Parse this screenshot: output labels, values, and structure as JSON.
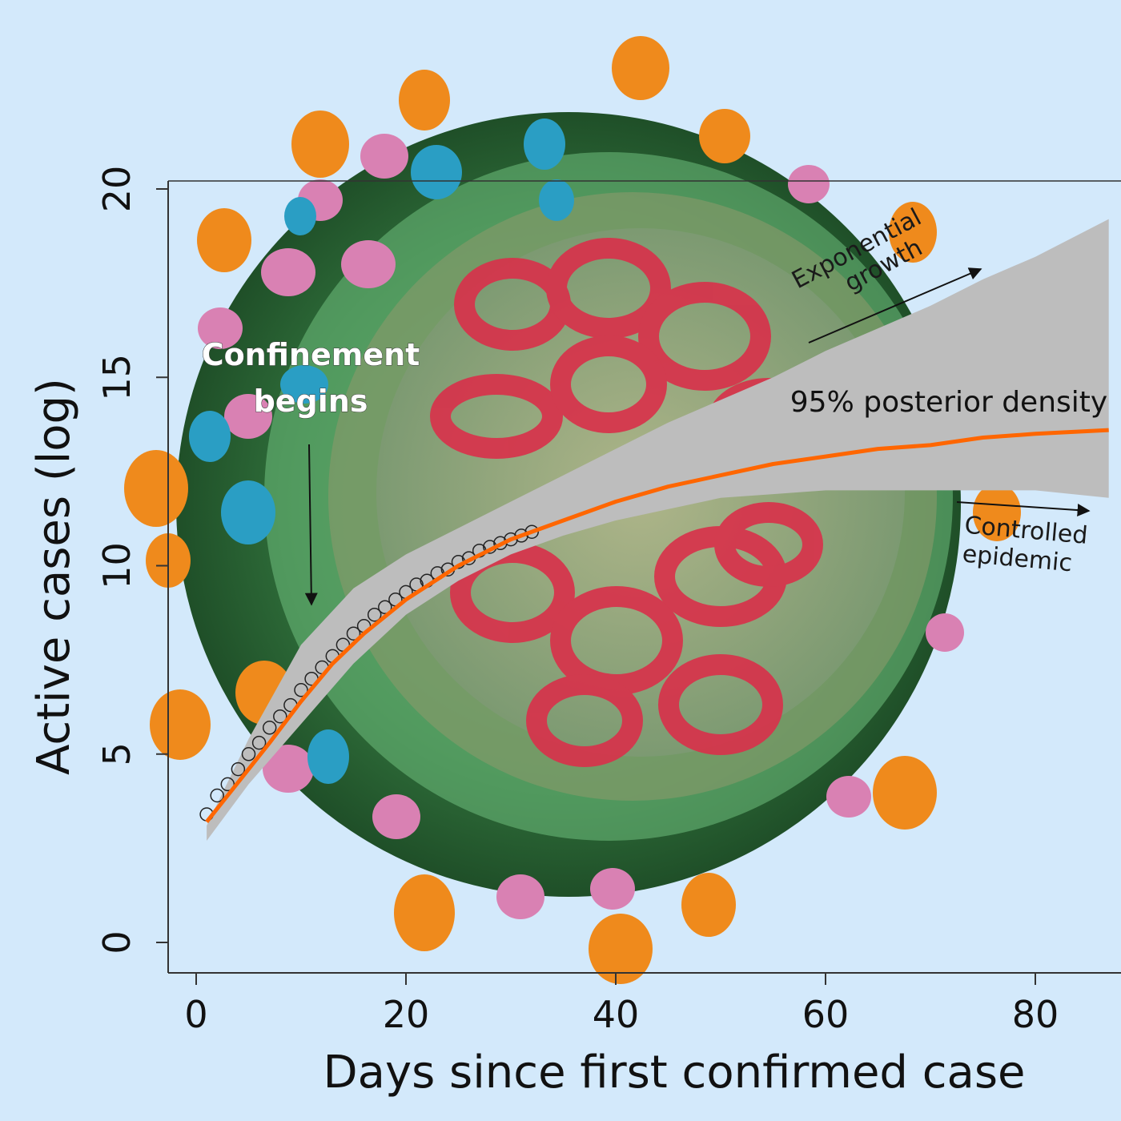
{
  "chart_data": {
    "type": "line",
    "xlabel": "Days since first confirmed case",
    "ylabel": "Active cases (log)",
    "xlim": [
      -3,
      88
    ],
    "ylim": [
      -1.5,
      20.5
    ],
    "x_ticks": [
      0,
      20,
      40,
      60,
      80
    ],
    "y_ticks": [
      0,
      5,
      10,
      15,
      20
    ],
    "grid": false,
    "observed": {
      "marker": "open-circle",
      "x": [
        1,
        2,
        3,
        4,
        5,
        6,
        7,
        8,
        9,
        10,
        11,
        12,
        13,
        14,
        15,
        16,
        17,
        18,
        19,
        20,
        21,
        22,
        23,
        24,
        25,
        26,
        27,
        28,
        29,
        30,
        31,
        32
      ],
      "y": [
        3.4,
        3.9,
        4.2,
        4.6,
        5.0,
        5.3,
        5.7,
        6.0,
        6.3,
        6.7,
        7.0,
        7.3,
        7.6,
        7.9,
        8.2,
        8.4,
        8.7,
        8.9,
        9.1,
        9.3,
        9.5,
        9.6,
        9.8,
        9.9,
        10.1,
        10.2,
        10.4,
        10.5,
        10.6,
        10.7,
        10.8,
        10.9
      ]
    },
    "series": [
      {
        "color": "#ff6600",
        "x": [
          1,
          3,
          5,
          7,
          10,
          13,
          16,
          20,
          25,
          30,
          35,
          40,
          45,
          50,
          55,
          60,
          65,
          70,
          75,
          80,
          87
        ],
        "y": [
          3.2,
          3.9,
          4.6,
          5.3,
          6.4,
          7.4,
          8.2,
          9.1,
          10.0,
          10.7,
          11.2,
          11.7,
          12.1,
          12.4,
          12.7,
          12.9,
          13.1,
          13.2,
          13.4,
          13.5,
          13.6
        ]
      }
    ],
    "band": {
      "label": "95% posterior density",
      "color": "#bdbdbd",
      "x": [
        1,
        5,
        10,
        15,
        20,
        25,
        30,
        35,
        40,
        45,
        50,
        55,
        60,
        65,
        70,
        75,
        80,
        87
      ],
      "upper": [
        3.1,
        5.4,
        7.9,
        9.4,
        10.3,
        11.0,
        11.7,
        12.4,
        13.1,
        13.8,
        14.4,
        15.0,
        15.7,
        16.3,
        16.9,
        17.6,
        18.2,
        19.2
      ],
      "lower": [
        2.7,
        4.2,
        5.8,
        7.4,
        8.7,
        9.6,
        10.3,
        10.8,
        11.2,
        11.5,
        11.8,
        11.9,
        12.0,
        12.0,
        12.0,
        12.0,
        12.0,
        11.8
      ]
    },
    "annotations": {
      "confinement_line1": "Confinement",
      "confinement_line2": "begins",
      "exp_line1": "Exponential",
      "exp_line2": "growth",
      "ctrl_line1": "Controlled",
      "ctrl_line2": "epidemic"
    }
  }
}
